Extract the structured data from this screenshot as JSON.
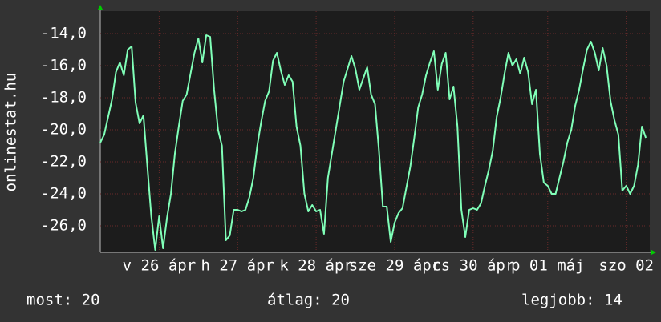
{
  "chart_data": {
    "type": "line",
    "y_label": "onlinestat.hu",
    "color": "#80ffb8",
    "grid": true,
    "xlim": [
      0,
      140
    ],
    "xticks": [
      {
        "value": 15,
        "label": "v 26 ápr"
      },
      {
        "value": 35,
        "label": "h 27 ápr"
      },
      {
        "value": 55,
        "label": "k 28 ápr"
      },
      {
        "value": 75,
        "label": "sze 29 ápr"
      },
      {
        "value": 95,
        "label": "cs 30 ápr"
      },
      {
        "value": 114,
        "label": "p 01 máj"
      },
      {
        "value": 134,
        "label": "szo 02"
      }
    ],
    "ylim": [
      -27.65,
      -12.6
    ],
    "yticks": [
      {
        "value": -14,
        "label": "-14,0"
      },
      {
        "value": -16,
        "label": "-16,0"
      },
      {
        "value": -18,
        "label": "-18,0"
      },
      {
        "value": -20,
        "label": "-20,0"
      },
      {
        "value": -22,
        "label": "-22,0"
      },
      {
        "value": -24,
        "label": "-24,0"
      },
      {
        "value": -26,
        "label": "-26,0"
      }
    ],
    "values": [
      -20.8,
      -20.3,
      -19.2,
      -18.1,
      -16.4,
      -15.8,
      -16.6,
      -15.0,
      -14.8,
      -18.3,
      -19.6,
      -19.1,
      -22.3,
      -25.4,
      -27.5,
      -25.4,
      -27.4,
      -25.5,
      -24.0,
      -21.5,
      -19.8,
      -18.2,
      -17.8,
      -16.5,
      -15.2,
      -14.3,
      -15.8,
      -14.1,
      -14.2,
      -17.5,
      -20.0,
      -21.0,
      -26.9,
      -26.6,
      -25.0,
      -25.0,
      -25.1,
      -25.0,
      -24.2,
      -23.0,
      -21.0,
      -19.5,
      -18.2,
      -17.6,
      -15.7,
      -15.2,
      -16.3,
      -17.2,
      -16.6,
      -17.0,
      -19.8,
      -21.0,
      -24.0,
      -25.1,
      -24.7,
      -25.1,
      -25.0,
      -26.5,
      -23.0,
      -21.5,
      -20.0,
      -18.5,
      -17.0,
      -16.2,
      -15.4,
      -16.2,
      -17.5,
      -16.8,
      -16.1,
      -17.8,
      -18.4,
      -21.3,
      -24.8,
      -24.8,
      -27.0,
      -25.8,
      -25.2,
      -24.9,
      -23.6,
      -22.3,
      -20.5,
      -18.6,
      -17.8,
      -16.6,
      -15.8,
      -15.1,
      -17.5,
      -15.9,
      -15.2,
      -18.1,
      -17.3,
      -19.8,
      -25.0,
      -26.7,
      -25.0,
      -24.9,
      -25.0,
      -24.6,
      -23.5,
      -22.5,
      -21.3,
      -19.2,
      -18.0,
      -16.5,
      -15.2,
      -16.0,
      -15.6,
      -16.5,
      -15.5,
      -16.4,
      -18.4,
      -17.5,
      -21.5,
      -23.3,
      -23.5,
      -24.0,
      -24.0,
      -23.0,
      -22.0,
      -20.8,
      -20.0,
      -18.5,
      -17.5,
      -16.2,
      -15.0,
      -14.5,
      -15.2,
      -16.3,
      -14.9,
      -16.0,
      -18.2,
      -19.4,
      -20.3,
      -23.8,
      -23.5,
      -24.0,
      -23.5,
      -22.2,
      -19.8,
      -20.5
    ],
    "footer": [
      "most: 20",
      "átlag: 20",
      "legjobb: 14"
    ]
  }
}
